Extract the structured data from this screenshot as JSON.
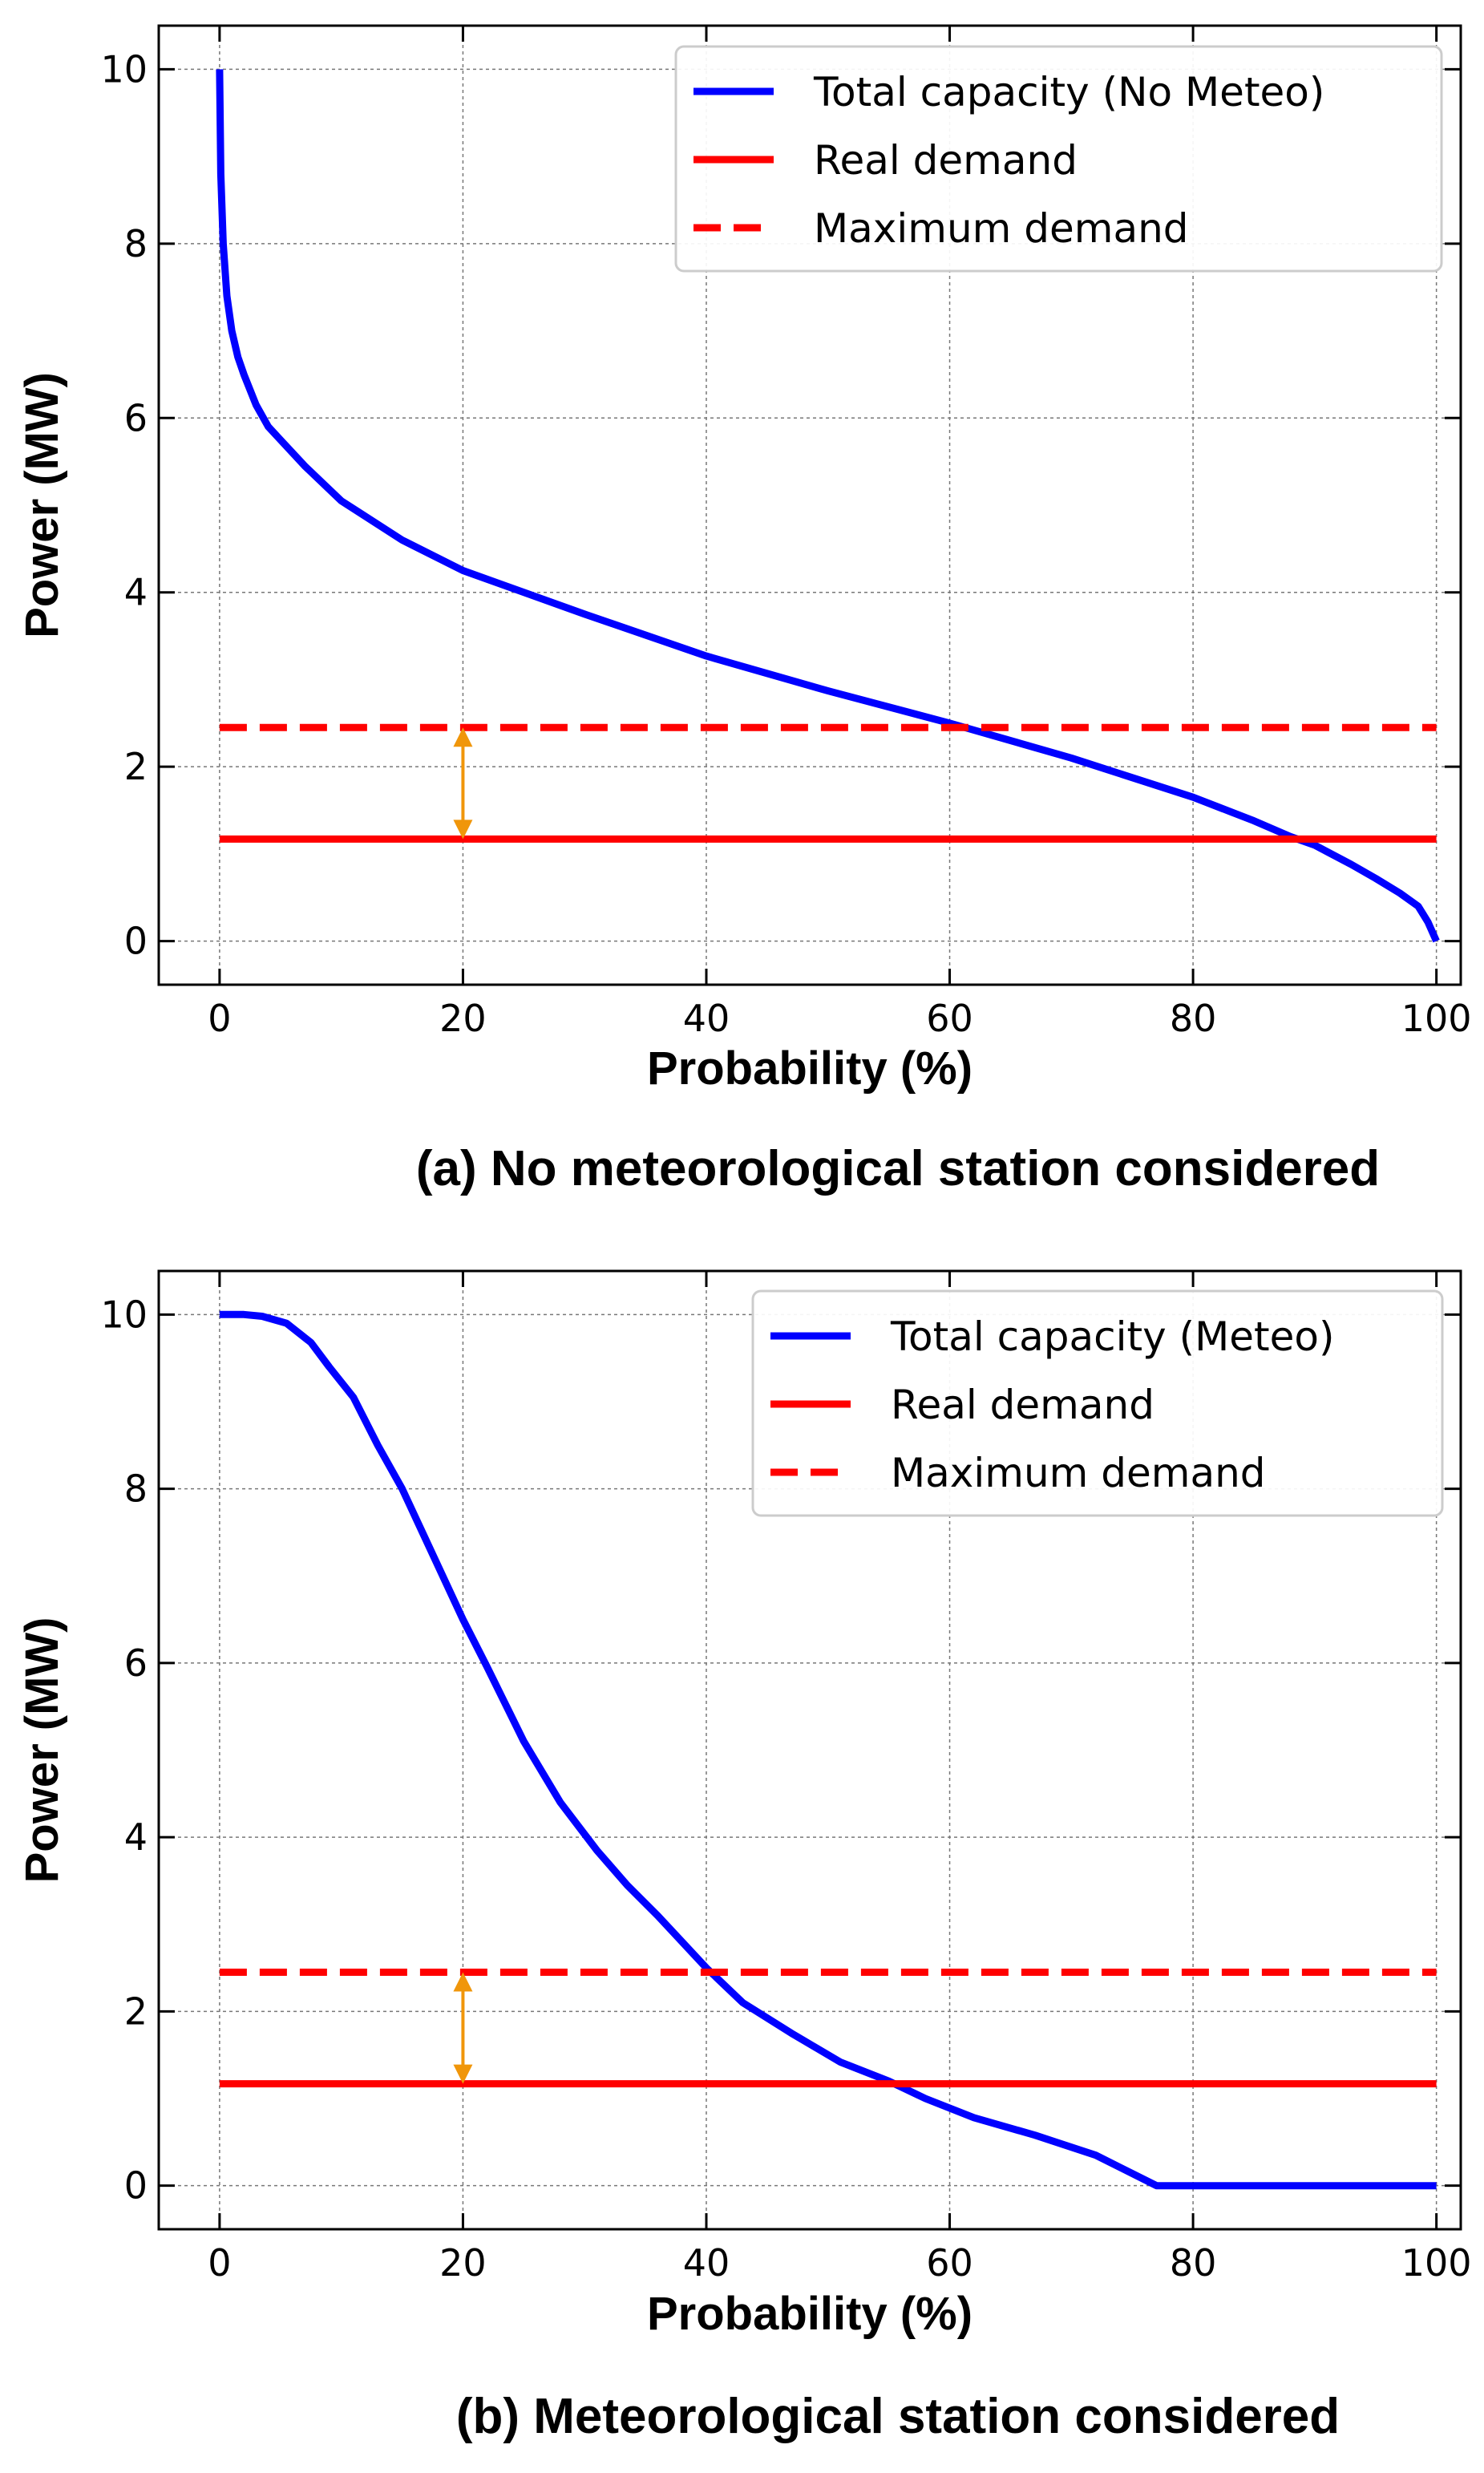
{
  "chart_data": [
    {
      "type": "line",
      "id": "a",
      "caption": "(a) No meteorological station considered",
      "xlabel": "Probability (%)",
      "ylabel": "Power (MW)",
      "xlim": [
        -5,
        102
      ],
      "ylim": [
        -0.5,
        10.5
      ],
      "xticks": [
        0,
        20,
        40,
        60,
        80,
        100
      ],
      "yticks": [
        0,
        2,
        4,
        6,
        8,
        10
      ],
      "grid": true,
      "legend_position": "top-right",
      "series": [
        {
          "name": "Total capacity (No Meteo)",
          "color": "#0000ff",
          "style": "solid",
          "x": [
            0,
            0.1,
            0.3,
            0.6,
            1,
            1.5,
            2,
            3,
            4,
            5,
            7,
            10,
            15,
            20,
            30,
            40,
            50,
            60,
            70,
            80,
            85,
            88,
            90,
            93,
            95,
            97,
            98.5,
            99.3,
            100
          ],
          "y": [
            10,
            8.8,
            8.0,
            7.4,
            7.0,
            6.7,
            6.5,
            6.15,
            5.9,
            5.75,
            5.45,
            5.05,
            4.6,
            4.25,
            3.75,
            3.27,
            2.87,
            2.5,
            2.1,
            1.65,
            1.38,
            1.2,
            1.1,
            0.88,
            0.72,
            0.55,
            0.4,
            0.22,
            0.0
          ]
        },
        {
          "name": "Real demand",
          "color": "#ff0000",
          "style": "solid",
          "x": [
            0,
            100
          ],
          "y": [
            1.17,
            1.17
          ]
        },
        {
          "name": "Maximum demand",
          "color": "#ff0000",
          "style": "dashed",
          "x": [
            0,
            100
          ],
          "y": [
            2.45,
            2.45
          ]
        }
      ],
      "annotation": {
        "type": "double-arrow",
        "color": "#f0960a",
        "x": 20,
        "y_from": 1.17,
        "y_to": 2.45
      }
    },
    {
      "type": "line",
      "id": "b",
      "caption": "(b) Meteorological station considered",
      "xlabel": "Probability (%)",
      "ylabel": "Power (MW)",
      "xlim": [
        -5,
        102
      ],
      "ylim": [
        -0.5,
        10.5
      ],
      "xticks": [
        0,
        20,
        40,
        60,
        80,
        100
      ],
      "yticks": [
        0,
        2,
        4,
        6,
        8,
        10
      ],
      "grid": true,
      "legend_position": "top-right",
      "series": [
        {
          "name": "Total capacity (Meteo)",
          "color": "#0000ff",
          "style": "solid",
          "x": [
            0,
            2,
            3.5,
            5.5,
            7.5,
            9,
            11,
            13,
            15,
            18,
            20,
            22,
            25,
            28,
            31,
            33.5,
            36,
            40,
            43,
            47,
            51,
            55,
            58,
            62,
            67,
            72,
            77,
            80,
            90,
            100
          ],
          "y": [
            10,
            10,
            9.98,
            9.9,
            9.68,
            9.4,
            9.05,
            8.5,
            8.0,
            7.1,
            6.5,
            5.95,
            5.1,
            4.4,
            3.85,
            3.45,
            3.1,
            2.5,
            2.1,
            1.75,
            1.42,
            1.2,
            1.0,
            0.78,
            0.58,
            0.35,
            0.0,
            0.0,
            0.0,
            0.0
          ]
        },
        {
          "name": "Real demand",
          "color": "#ff0000",
          "style": "solid",
          "x": [
            0,
            100
          ],
          "y": [
            1.17,
            1.17
          ]
        },
        {
          "name": "Maximum demand",
          "color": "#ff0000",
          "style": "dashed",
          "x": [
            0,
            100
          ],
          "y": [
            2.45,
            2.45
          ]
        }
      ],
      "annotation": {
        "type": "double-arrow",
        "color": "#f0960a",
        "x": 20,
        "y_from": 1.17,
        "y_to": 2.45
      }
    }
  ]
}
